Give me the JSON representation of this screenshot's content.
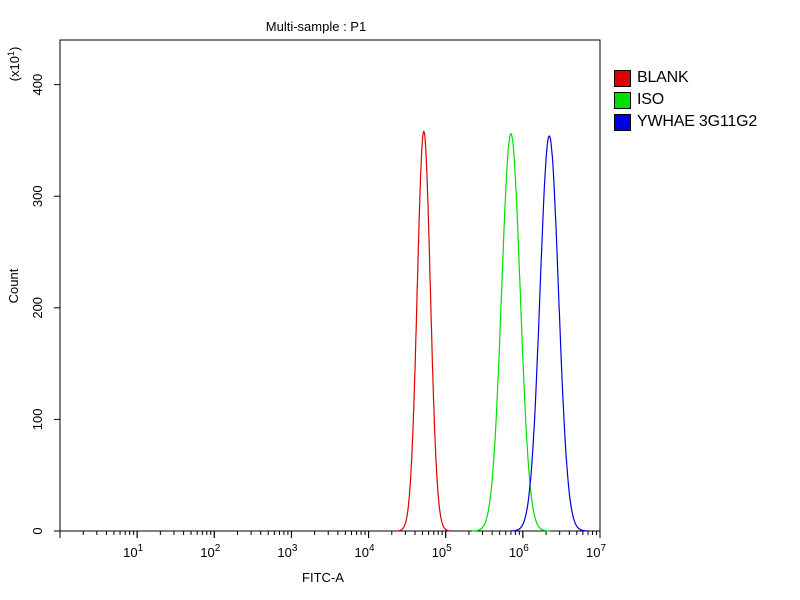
{
  "chart_data": {
    "type": "line",
    "title": "Multi-sample : P1",
    "xlabel": "FITC-A",
    "ylabel": "Count",
    "y_multiplier_label": "(x10^1)",
    "x_scale": "log",
    "xlim": [
      1,
      10000000
    ],
    "ylim": [
      0,
      440
    ],
    "y_ticks": [
      0,
      100,
      200,
      300,
      400
    ],
    "x_ticks": [
      {
        "value": 10,
        "base": "10",
        "exp": "1"
      },
      {
        "value": 100,
        "base": "10",
        "exp": "2"
      },
      {
        "value": 1000,
        "base": "10",
        "exp": "3"
      },
      {
        "value": 10000,
        "base": "10",
        "exp": "4"
      },
      {
        "value": 100000,
        "base": "10",
        "exp": "5"
      },
      {
        "value": 1000000,
        "base": "10",
        "exp": "6"
      },
      {
        "value": 10000000,
        "base": "10",
        "exp": "7"
      }
    ],
    "grid": false,
    "legend_position": "right",
    "series": [
      {
        "name": "BLANK",
        "color": "#e00000",
        "peak_x": 52000,
        "peak_y": 358,
        "spread_decades": 0.085
      },
      {
        "name": "ISO",
        "color": "#00e000",
        "peak_x": 700000,
        "peak_y": 356,
        "spread_decades": 0.12
      },
      {
        "name": "YWHAE 3G11G2",
        "color": "#0000e0",
        "peak_x": 2200000,
        "peak_y": 354,
        "spread_decades": 0.12
      }
    ]
  }
}
